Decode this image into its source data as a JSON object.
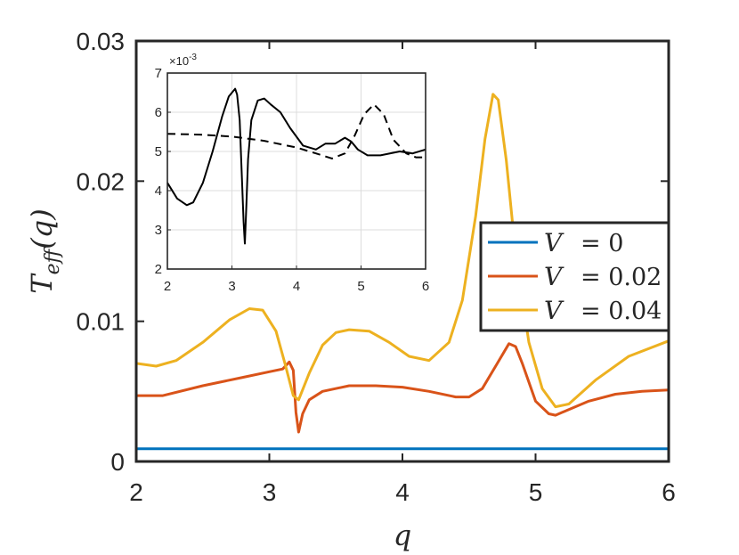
{
  "chart_data": [
    {
      "type": "line",
      "xlabel": "q",
      "ylabel": "T_{eff}(q)",
      "xlim": [
        2,
        6
      ],
      "ylim": [
        0,
        0.03
      ],
      "xticks": [
        "2",
        "3",
        "4",
        "5",
        "6"
      ],
      "yticks": [
        "0",
        "0.01",
        "0.02",
        "0.03"
      ],
      "grid": false,
      "legend": {
        "placement": "right",
        "entries": [
          {
            "variable": "V",
            "value": "= 0"
          },
          {
            "variable": "V",
            "value": "= 0.02"
          },
          {
            "variable": "V",
            "value": "= 0.04"
          }
        ]
      },
      "series": [
        {
          "name": "V = 0",
          "color": "#0072BD",
          "x": [
            2.0,
            6.0
          ],
          "y": [
            0.0009,
            0.0009
          ]
        },
        {
          "name": "V = 0.02",
          "color": "#D95319",
          "x": [
            2.0,
            2.2,
            2.5,
            2.8,
            3.0,
            3.1,
            3.15,
            3.18,
            3.2,
            3.22,
            3.25,
            3.3,
            3.4,
            3.6,
            3.8,
            4.0,
            4.2,
            4.4,
            4.5,
            4.6,
            4.7,
            4.8,
            4.85,
            4.9,
            5.0,
            5.1,
            5.15,
            5.2,
            5.4,
            5.6,
            5.8,
            6.0
          ],
          "y": [
            0.0047,
            0.0047,
            0.0054,
            0.006,
            0.0064,
            0.0066,
            0.0071,
            0.0065,
            0.0035,
            0.0021,
            0.0034,
            0.0044,
            0.005,
            0.0054,
            0.0054,
            0.0053,
            0.005,
            0.0046,
            0.0046,
            0.0052,
            0.0068,
            0.0084,
            0.0082,
            0.007,
            0.0043,
            0.0034,
            0.0033,
            0.0035,
            0.0043,
            0.0048,
            0.005,
            0.0051
          ]
        },
        {
          "name": "V = 0.04",
          "color": "#EDB120",
          "x": [
            2.0,
            2.15,
            2.3,
            2.5,
            2.7,
            2.85,
            2.95,
            3.05,
            3.12,
            3.18,
            3.22,
            3.3,
            3.4,
            3.5,
            3.6,
            3.75,
            3.9,
            4.05,
            4.2,
            4.35,
            4.45,
            4.55,
            4.62,
            4.68,
            4.72,
            4.78,
            4.85,
            4.95,
            5.05,
            5.15,
            5.25,
            5.45,
            5.7,
            6.0
          ],
          "y": [
            0.007,
            0.0068,
            0.0072,
            0.0085,
            0.0101,
            0.0109,
            0.0108,
            0.0093,
            0.0069,
            0.0047,
            0.0044,
            0.0063,
            0.0083,
            0.0092,
            0.0094,
            0.0093,
            0.0085,
            0.0075,
            0.0072,
            0.0085,
            0.0115,
            0.0175,
            0.023,
            0.0262,
            0.0258,
            0.0215,
            0.0148,
            0.0085,
            0.0052,
            0.0039,
            0.0041,
            0.0058,
            0.0075,
            0.0086
          ]
        }
      ]
    },
    {
      "type": "line",
      "exponent_label": "×10",
      "exponent_power": "-3",
      "xlim": [
        2,
        6
      ],
      "ylim": [
        2,
        7
      ],
      "xticks": [
        "2",
        "3",
        "4",
        "5",
        "6"
      ],
      "yticks": [
        "2",
        "3",
        "4",
        "5",
        "6",
        "7"
      ],
      "grid": true,
      "series": [
        {
          "style": "solid",
          "color": "#000000",
          "x": [
            2.0,
            2.15,
            2.3,
            2.4,
            2.55,
            2.7,
            2.85,
            2.95,
            3.05,
            3.08,
            3.12,
            3.15,
            3.18,
            3.2,
            3.22,
            3.25,
            3.3,
            3.4,
            3.5,
            3.6,
            3.75,
            3.9,
            4.1,
            4.3,
            4.45,
            4.6,
            4.75,
            4.85,
            4.95,
            5.1,
            5.3,
            5.6,
            5.8,
            6.0
          ],
          "y": [
            4.2,
            3.8,
            3.63,
            3.7,
            4.2,
            5.0,
            5.9,
            6.4,
            6.6,
            6.45,
            5.8,
            4.5,
            3.2,
            2.65,
            3.5,
            4.8,
            5.8,
            6.3,
            6.35,
            6.2,
            6.0,
            5.6,
            5.15,
            5.05,
            5.2,
            5.2,
            5.35,
            5.25,
            5.05,
            4.9,
            4.9,
            5.0,
            4.95,
            5.05
          ]
        },
        {
          "style": "dashed",
          "color": "#000000",
          "x": [
            2.0,
            2.5,
            3.0,
            3.5,
            4.0,
            4.3,
            4.55,
            4.75,
            4.9,
            5.05,
            5.2,
            5.35,
            5.5,
            5.7,
            5.85,
            6.0
          ],
          "y": [
            5.45,
            5.43,
            5.38,
            5.27,
            5.1,
            4.95,
            4.82,
            4.95,
            5.4,
            5.95,
            6.2,
            5.95,
            5.3,
            4.95,
            4.85,
            4.85
          ]
        }
      ]
    }
  ]
}
